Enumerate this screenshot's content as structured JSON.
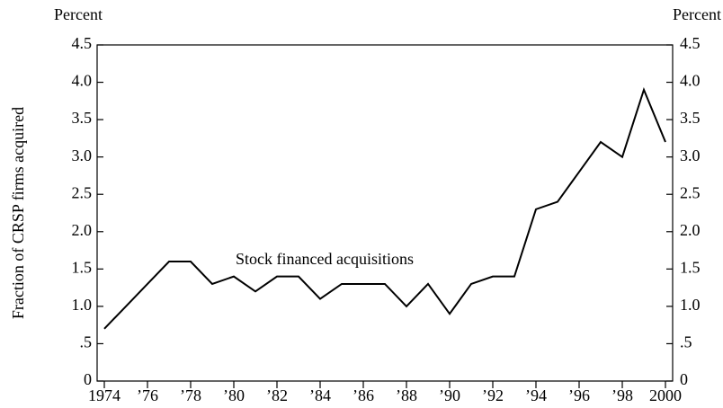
{
  "chart_data": {
    "type": "line",
    "y_axis_label": "Fraction of CRSP firms acquired",
    "y_unit_label": "Percent",
    "y2_unit_label": "Percent",
    "annotation": "Stock financed acquisitions",
    "color": "#000000",
    "x": [
      1974,
      1975,
      1976,
      1977,
      1978,
      1979,
      1980,
      1981,
      1982,
      1983,
      1984,
      1985,
      1986,
      1987,
      1988,
      1989,
      1990,
      1991,
      1992,
      1993,
      1994,
      1995,
      1996,
      1997,
      1998,
      1999,
      2000
    ],
    "values": [
      0.7,
      1.0,
      1.3,
      1.6,
      1.6,
      1.3,
      1.4,
      1.2,
      1.4,
      1.4,
      1.1,
      1.3,
      1.3,
      1.3,
      1.0,
      1.3,
      0.9,
      1.3,
      1.4,
      1.4,
      2.3,
      2.4,
      2.8,
      3.2,
      3.0,
      3.9,
      3.2
    ],
    "xlim": [
      1974,
      2000
    ],
    "xticks": [
      1974,
      {
        "value": 1976,
        "label": "’76"
      },
      {
        "value": 1978,
        "label": "’78"
      },
      {
        "value": 1980,
        "label": "’80"
      },
      {
        "value": 1982,
        "label": "’82"
      },
      {
        "value": 1984,
        "label": "’84"
      },
      {
        "value": 1986,
        "label": "’86"
      },
      {
        "value": 1988,
        "label": "’88"
      },
      {
        "value": 1990,
        "label": "’90"
      },
      {
        "value": 1992,
        "label": "’92"
      },
      {
        "value": 1994,
        "label": "’94"
      },
      {
        "value": 1996,
        "label": "’96"
      },
      {
        "value": 1998,
        "label": "’98"
      },
      2000
    ],
    "ylim": [
      0,
      4.5
    ],
    "yticks": [
      0,
      {
        "value": 0.5,
        "label": ".5"
      },
      {
        "value": 1,
        "label": "1.0"
      },
      1.5,
      {
        "value": 2,
        "label": "2.0"
      },
      2.5,
      {
        "value": 3,
        "label": "3.0"
      },
      3.5,
      {
        "value": 4,
        "label": "4.0"
      },
      4.5
    ],
    "y2lim": [
      0,
      4.5
    ],
    "y2ticks": [
      0,
      {
        "value": 0.5,
        "label": ".5"
      },
      {
        "value": 1,
        "label": "1.0"
      },
      1.5,
      {
        "value": 2,
        "label": "2.0"
      },
      2.5,
      {
        "value": 3,
        "label": "3.0"
      },
      3.5,
      {
        "value": 4,
        "label": "4.0"
      },
      4.5
    ]
  }
}
